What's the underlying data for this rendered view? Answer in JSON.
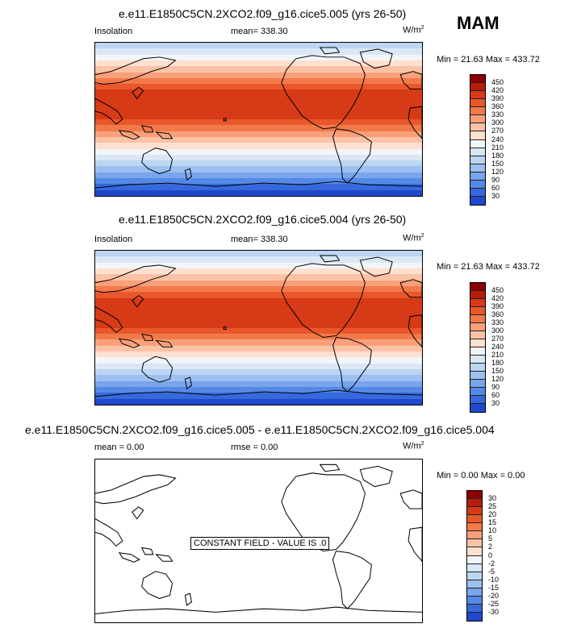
{
  "season": "MAM",
  "panels": [
    {
      "title": "e.e11.E1850C5CN.2XCO2.f09_g16.cice5.005 (yrs 26-50)",
      "left_label": "Insolation",
      "center_label": "mean= 338.30",
      "units_base": "W/m",
      "units_exp": "2",
      "minmax": "Min =  21.63 Max = 433.72"
    },
    {
      "title": "e.e11.E1850C5CN.2XCO2.f09_g16.cice5.004 (yrs 26-50)",
      "left_label": "Insolation",
      "center_label": "mean= 338.30",
      "units_base": "W/m",
      "units_exp": "2",
      "minmax": "Min =  21.63 Max = 433.72"
    },
    {
      "title": "e.e11.E1850C5CN.2XCO2.f09_g16.cice5.005 - e.e11.E1850C5CN.2XCO2.f09_g16.cice5.004",
      "left_label": "mean =   0.00",
      "center_label": "rmse =   0.00",
      "units_base": "W/m",
      "units_exp": "2",
      "minmax": "Min =  0.00 Max =  0.00",
      "annotation": "CONSTANT FIELD - VALUE IS .0"
    }
  ],
  "colors": {
    "abs_scale": [
      "#8b0000",
      "#b81d0c",
      "#d63a16",
      "#e8582a",
      "#f27a4a",
      "#f8a07a",
      "#fbc2a6",
      "#fde0d0",
      "#f2f6f8",
      "#d9e7f6",
      "#bcd5f2",
      "#9cc0ef",
      "#78a5ec",
      "#5589e6",
      "#3669dc",
      "#1f48cc",
      "#1129ae",
      "#0a0a80"
    ],
    "diff_scale": [
      "#8b0000",
      "#b81d0c",
      "#d63a16",
      "#e8582a",
      "#f27a4a",
      "#f8a07a",
      "#fbc2a6",
      "#fde0d0",
      "#f2f6f8",
      "#d9e7f6",
      "#bcd5f2",
      "#9cc0ef",
      "#78a5ec",
      "#5589e6",
      "#3669dc",
      "#1f48cc",
      "#0a0a80"
    ]
  },
  "chart_data": [
    {
      "type": "heatmap",
      "title": "e.e11.E1850C5CN.2XCO2.f09_g16.cice5.005 (yrs 26-50)",
      "variable": "Insolation",
      "units": "W/m2",
      "mean": 338.3,
      "min": 21.63,
      "max": 433.72,
      "colorbar_levels": [
        450,
        420,
        390,
        360,
        330,
        300,
        270,
        240,
        210,
        180,
        150,
        120,
        90,
        60,
        30
      ],
      "zonal_bands_south_to_north": [
        30,
        60,
        90,
        120,
        150,
        180,
        210,
        240,
        270,
        300,
        330,
        360,
        390,
        420,
        420,
        420,
        420,
        420,
        390,
        360,
        330,
        300,
        270,
        240,
        210,
        180
      ]
    },
    {
      "type": "heatmap",
      "title": "e.e11.E1850C5CN.2XCO2.f09_g16.cice5.004 (yrs 26-50)",
      "variable": "Insolation",
      "units": "W/m2",
      "mean": 338.3,
      "min": 21.63,
      "max": 433.72,
      "colorbar_levels": [
        450,
        420,
        390,
        360,
        330,
        300,
        270,
        240,
        210,
        180,
        150,
        120,
        90,
        60,
        30
      ],
      "zonal_bands_south_to_north": [
        30,
        60,
        90,
        120,
        150,
        180,
        210,
        240,
        270,
        300,
        330,
        360,
        390,
        420,
        420,
        420,
        420,
        420,
        390,
        360,
        330,
        300,
        270,
        240,
        210,
        180
      ]
    },
    {
      "type": "heatmap",
      "title": "e.e11.E1850C5CN.2XCO2.f09_g16.cice5.005 - e.e11.E1850C5CN.2XCO2.f09_g16.cice5.004",
      "units": "W/m2",
      "mean": 0.0,
      "rmse": 0.0,
      "min": 0.0,
      "max": 0.0,
      "colorbar_levels": [
        30,
        25,
        20,
        15,
        10,
        5,
        2,
        0,
        -2,
        -5,
        -10,
        -15,
        -20,
        -25,
        -30
      ],
      "annotation": "CONSTANT FIELD - VALUE IS .0"
    }
  ]
}
